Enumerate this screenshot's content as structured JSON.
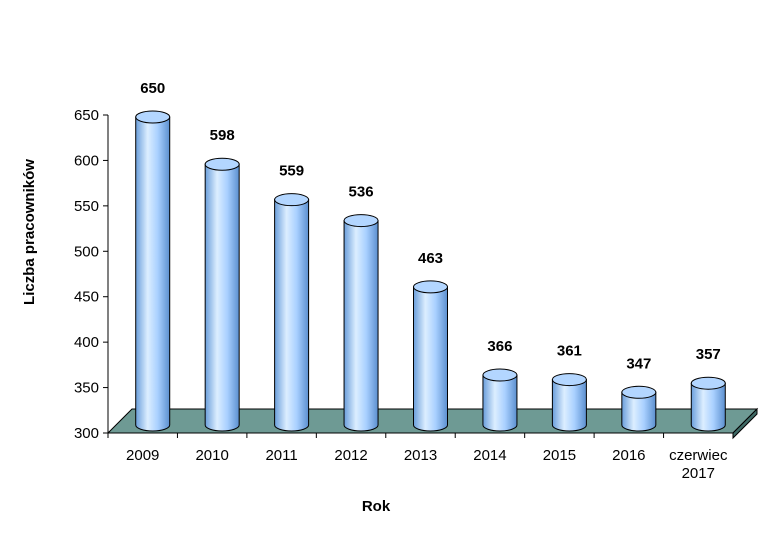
{
  "chart_data": {
    "type": "bar",
    "style": "3d-cylinder",
    "categories": [
      "2009",
      "2010",
      "2011",
      "2012",
      "2013",
      "2014",
      "2015",
      "2016",
      "czerwiec 2017"
    ],
    "values": [
      650,
      598,
      559,
      536,
      463,
      366,
      361,
      347,
      357
    ],
    "xlabel": "Rok",
    "ylabel": "Liczba pracowników",
    "ylim": [
      300,
      650
    ],
    "yticks": [
      300,
      350,
      400,
      450,
      500,
      550,
      600,
      650
    ],
    "grid": false,
    "legend": false,
    "colors": {
      "bar_fill": "#99CCFF",
      "bar_highlight": "#DCEEFF",
      "bar_shadow": "#5B8FCF",
      "bar_top": "#B3D6FF",
      "outline": "#000000",
      "floor": "#6E9A94",
      "floor_front": "#3F6B66"
    }
  }
}
